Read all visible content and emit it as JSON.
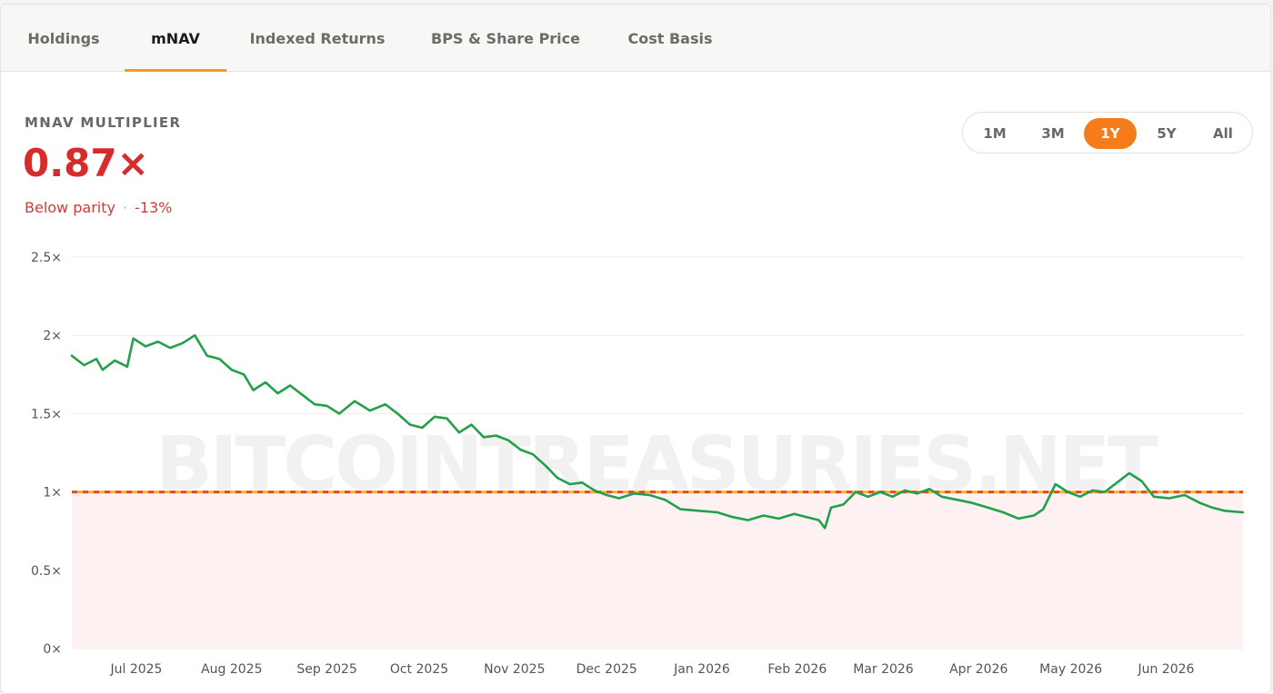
{
  "tabs": [
    {
      "label": "Holdings",
      "active": false
    },
    {
      "label": "mNAV",
      "active": true
    },
    {
      "label": "Indexed Returns",
      "active": false
    },
    {
      "label": "BPS & Share Price",
      "active": false
    },
    {
      "label": "Cost Basis",
      "active": false
    }
  ],
  "metric": {
    "label": "MNAV MULTIPLIER",
    "value": "0.87×",
    "status": "Below parity",
    "separator": "·",
    "change": "-13%"
  },
  "ranges": [
    {
      "label": "1M",
      "active": false
    },
    {
      "label": "3M",
      "active": false
    },
    {
      "label": "1Y",
      "active": true
    },
    {
      "label": "5Y",
      "active": false
    },
    {
      "label": "All",
      "active": false
    }
  ],
  "colors": {
    "accent": "#f47c1c",
    "tab_underline": "#f0a020",
    "negative": "#d62c2c",
    "line": "#22a04b",
    "parity_line_a": "#f0b429",
    "parity_line_b": "#e0483e",
    "below_fill": "#fdf1f1"
  },
  "watermark": "BITCOINTREASURIES.NET",
  "chart_data": {
    "type": "line",
    "title": "",
    "xlabel": "",
    "ylabel": "",
    "ylim": [
      0,
      2.5
    ],
    "y_ticks": [
      {
        "value": 0,
        "label": "0×"
      },
      {
        "value": 0.5,
        "label": "0.5×"
      },
      {
        "value": 1,
        "label": "1×"
      },
      {
        "value": 1.5,
        "label": "1.5×"
      },
      {
        "value": 2,
        "label": "2×"
      },
      {
        "value": 2.5,
        "label": "2.5×"
      }
    ],
    "x_range": [
      "2025-06-10",
      "2026-06-26"
    ],
    "x_ticks": [
      {
        "date": "2025-07-01",
        "label": "Jul 2025"
      },
      {
        "date": "2025-08-01",
        "label": "Aug 2025"
      },
      {
        "date": "2025-09-01",
        "label": "Sep 2025"
      },
      {
        "date": "2025-10-01",
        "label": "Oct 2025"
      },
      {
        "date": "2025-11-01",
        "label": "Nov 2025"
      },
      {
        "date": "2025-12-01",
        "label": "Dec 2025"
      },
      {
        "date": "2026-01-01",
        "label": "Jan 2026"
      },
      {
        "date": "2026-02-01",
        "label": "Feb 2026"
      },
      {
        "date": "2026-03-01",
        "label": "Mar 2026"
      },
      {
        "date": "2026-04-01",
        "label": "Apr 2026"
      },
      {
        "date": "2026-05-01",
        "label": "May 2026"
      },
      {
        "date": "2026-06-01",
        "label": "Jun 2026"
      }
    ],
    "reference_line": {
      "value": 1
    },
    "grid": true,
    "series": [
      {
        "points": [
          [
            "2025-06-10",
            1.87
          ],
          [
            "2025-06-14",
            1.81
          ],
          [
            "2025-06-18",
            1.85
          ],
          [
            "2025-06-20",
            1.78
          ],
          [
            "2025-06-24",
            1.84
          ],
          [
            "2025-06-28",
            1.8
          ],
          [
            "2025-06-30",
            1.98
          ],
          [
            "2025-07-04",
            1.93
          ],
          [
            "2025-07-08",
            1.96
          ],
          [
            "2025-07-12",
            1.92
          ],
          [
            "2025-07-16",
            1.95
          ],
          [
            "2025-07-20",
            2.0
          ],
          [
            "2025-07-24",
            1.87
          ],
          [
            "2025-07-28",
            1.85
          ],
          [
            "2025-08-01",
            1.78
          ],
          [
            "2025-08-05",
            1.75
          ],
          [
            "2025-08-08",
            1.65
          ],
          [
            "2025-08-12",
            1.7
          ],
          [
            "2025-08-16",
            1.63
          ],
          [
            "2025-08-20",
            1.68
          ],
          [
            "2025-08-24",
            1.62
          ],
          [
            "2025-08-28",
            1.56
          ],
          [
            "2025-09-01",
            1.55
          ],
          [
            "2025-09-05",
            1.5
          ],
          [
            "2025-09-10",
            1.58
          ],
          [
            "2025-09-15",
            1.52
          ],
          [
            "2025-09-20",
            1.56
          ],
          [
            "2025-09-24",
            1.5
          ],
          [
            "2025-09-28",
            1.43
          ],
          [
            "2025-10-02",
            1.41
          ],
          [
            "2025-10-06",
            1.48
          ],
          [
            "2025-10-10",
            1.47
          ],
          [
            "2025-10-14",
            1.38
          ],
          [
            "2025-10-18",
            1.43
          ],
          [
            "2025-10-22",
            1.35
          ],
          [
            "2025-10-26",
            1.36
          ],
          [
            "2025-10-30",
            1.33
          ],
          [
            "2025-11-03",
            1.27
          ],
          [
            "2025-11-07",
            1.24
          ],
          [
            "2025-11-11",
            1.17
          ],
          [
            "2025-11-15",
            1.09
          ],
          [
            "2025-11-19",
            1.05
          ],
          [
            "2025-11-23",
            1.06
          ],
          [
            "2025-11-27",
            1.01
          ],
          [
            "2025-12-01",
            0.98
          ],
          [
            "2025-12-05",
            0.96
          ],
          [
            "2025-12-10",
            0.99
          ],
          [
            "2025-12-15",
            0.98
          ],
          [
            "2025-12-20",
            0.95
          ],
          [
            "2025-12-25",
            0.89
          ],
          [
            "2025-12-31",
            0.88
          ],
          [
            "2026-01-06",
            0.87
          ],
          [
            "2026-01-11",
            0.84
          ],
          [
            "2026-01-16",
            0.82
          ],
          [
            "2026-01-21",
            0.85
          ],
          [
            "2026-01-26",
            0.83
          ],
          [
            "2026-01-31",
            0.86
          ],
          [
            "2026-02-04",
            0.84
          ],
          [
            "2026-02-08",
            0.82
          ],
          [
            "2026-02-10",
            0.77
          ],
          [
            "2026-02-12",
            0.9
          ],
          [
            "2026-02-16",
            0.92
          ],
          [
            "2026-02-20",
            1.0
          ],
          [
            "2026-02-24",
            0.97
          ],
          [
            "2026-02-28",
            1.0
          ],
          [
            "2026-03-04",
            0.97
          ],
          [
            "2026-03-08",
            1.01
          ],
          [
            "2026-03-12",
            0.99
          ],
          [
            "2026-03-16",
            1.02
          ],
          [
            "2026-03-20",
            0.97
          ],
          [
            "2026-03-25",
            0.95
          ],
          [
            "2026-03-30",
            0.93
          ],
          [
            "2026-04-04",
            0.9
          ],
          [
            "2026-04-09",
            0.87
          ],
          [
            "2026-04-14",
            0.83
          ],
          [
            "2026-04-19",
            0.85
          ],
          [
            "2026-04-22",
            0.89
          ],
          [
            "2026-04-26",
            1.05
          ],
          [
            "2026-04-30",
            1.0
          ],
          [
            "2026-05-04",
            0.97
          ],
          [
            "2026-05-08",
            1.01
          ],
          [
            "2026-05-12",
            1.0
          ],
          [
            "2026-05-16",
            1.06
          ],
          [
            "2026-05-20",
            1.12
          ],
          [
            "2026-05-24",
            1.07
          ],
          [
            "2026-05-28",
            0.97
          ],
          [
            "2026-06-02",
            0.96
          ],
          [
            "2026-06-07",
            0.98
          ],
          [
            "2026-06-12",
            0.93
          ],
          [
            "2026-06-16",
            0.9
          ],
          [
            "2026-06-20",
            0.88
          ],
          [
            "2026-06-26",
            0.87
          ]
        ]
      }
    ]
  }
}
